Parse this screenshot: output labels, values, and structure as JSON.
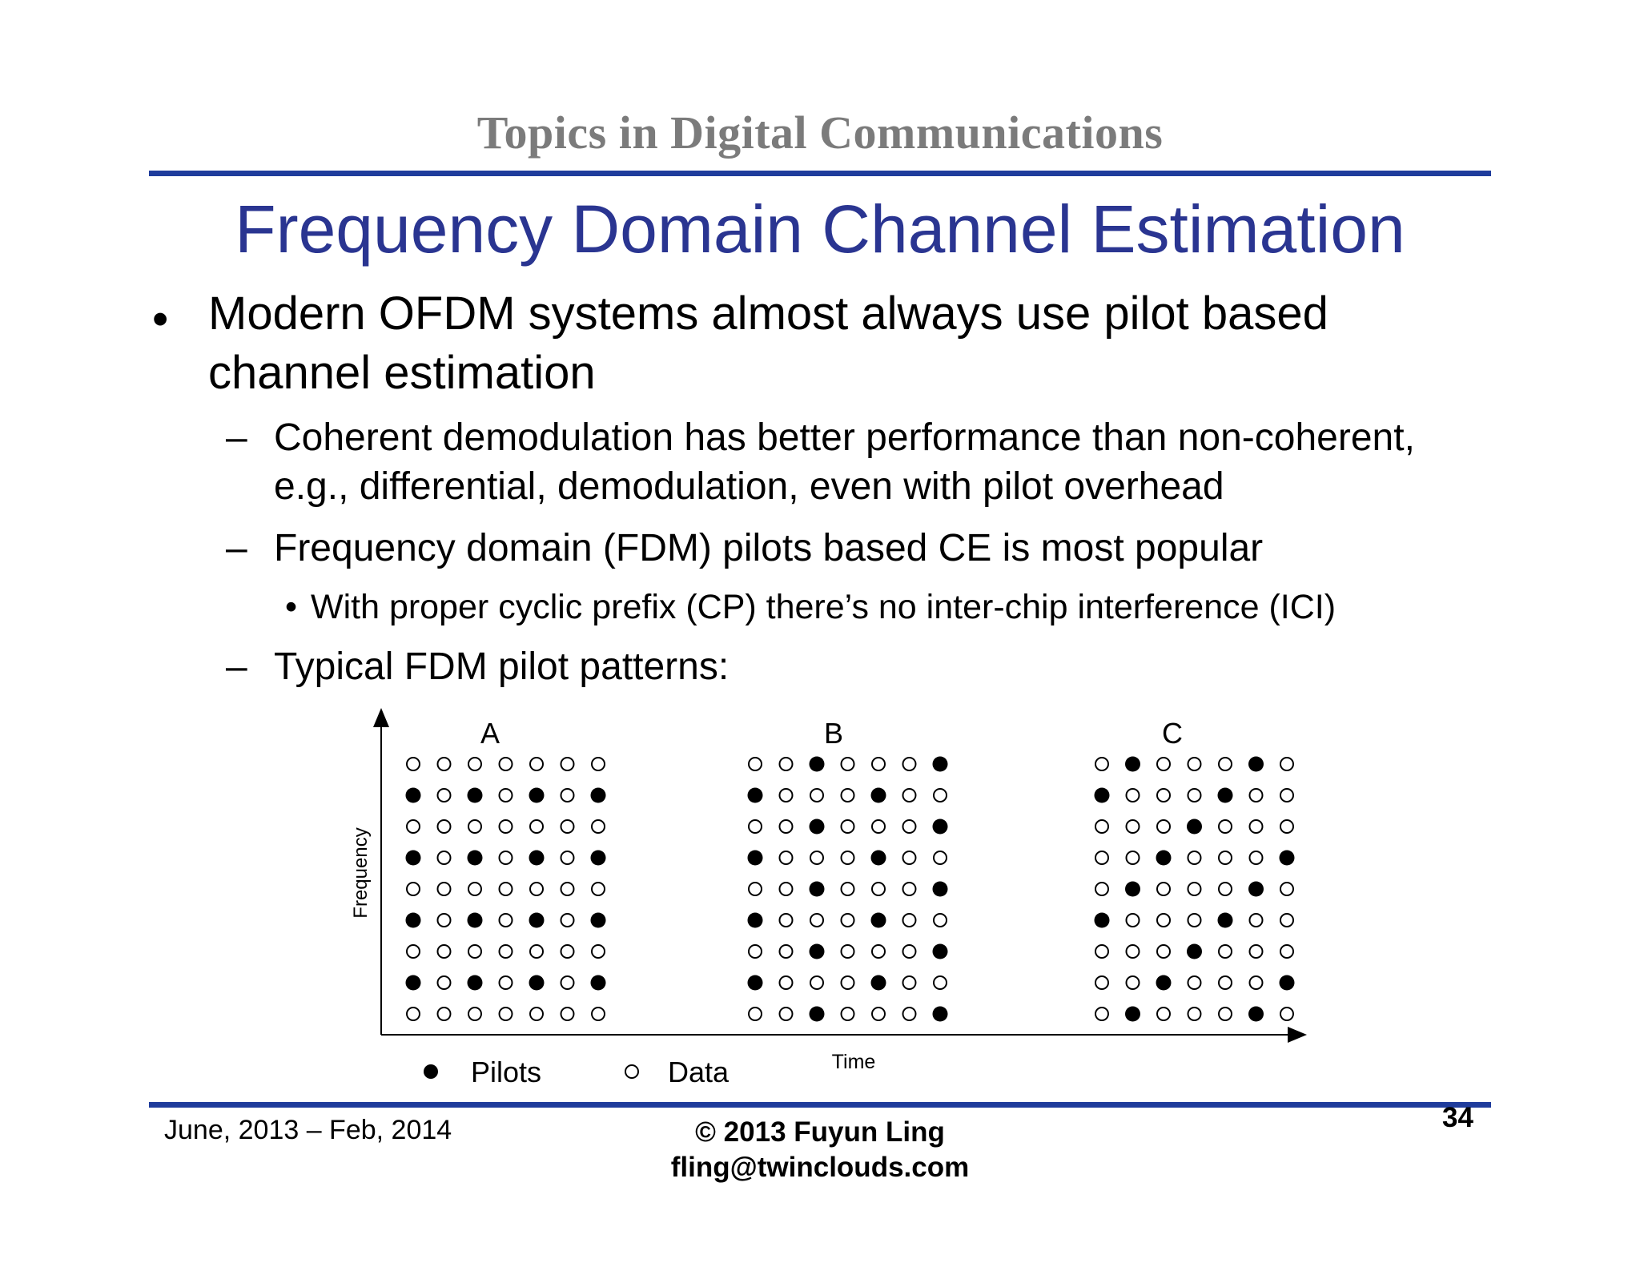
{
  "header": "Topics in Digital Communications",
  "title": "Frequency Domain Channel Estimation",
  "bullets": {
    "b1_marker": "•",
    "b1_line1": "Modern OFDM systems almost always use pilot based",
    "b1_line2": "channel estimation",
    "dash": "–",
    "s1_line1": "Coherent demodulation has better performance than non-coherent,",
    "s1_line2": "e.g., differential, demodulation, even with pilot overhead",
    "s2": "Frequency domain (FDM) pilots based CE is most popular",
    "s2_sub_marker": "•",
    "s2_sub": "With proper cyclic prefix (CP) there’s no inter-chip interference (ICI)",
    "s3": "Typical FDM pilot patterns:"
  },
  "figure": {
    "y_label": "Frequency",
    "x_label": "Time",
    "legend_pilots": "Pilots",
    "legend_data": "Data",
    "patterns": [
      {
        "label": "A",
        "grid": [
          "0000000",
          "1010101",
          "0000000",
          "1010101",
          "0000000",
          "1010101",
          "0000000",
          "1010101",
          "0000000"
        ]
      },
      {
        "label": "B",
        "grid": [
          "0010001",
          "1000100",
          "0010001",
          "1000100",
          "0010001",
          "1000100",
          "0010001",
          "1000100",
          "0010001"
        ]
      },
      {
        "label": "C",
        "grid": [
          "0100010",
          "1000100",
          "0001000",
          "0010001",
          "0100010",
          "1000100",
          "0001000",
          "0010001",
          "0100010"
        ]
      }
    ]
  },
  "footer": {
    "date_range": "June, 2013 – Feb, 2014",
    "copyright": "© 2013 Fuyun Ling",
    "email": "fling@twinclouds.com",
    "page_number": "34"
  },
  "colors": {
    "title": "#2a3591",
    "header": "#7b7b7b",
    "rule": "#1f3c9c"
  }
}
